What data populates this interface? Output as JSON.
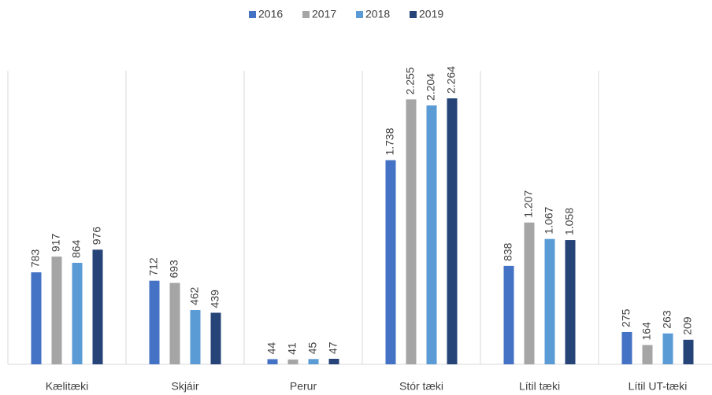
{
  "chart_data": {
    "type": "bar",
    "categories": [
      "Kælitæki",
      "Skjáir",
      "Perur",
      "Stór tæki",
      "Lítil tæki",
      "Lítil UT-tæki"
    ],
    "series": [
      {
        "name": "2016",
        "color": "#4472c4",
        "values": [
          783,
          712,
          44,
          1738,
          838,
          275
        ],
        "value_labels": [
          "783",
          "712",
          "44",
          "1.738",
          "838",
          "275"
        ]
      },
      {
        "name": "2017",
        "color": "#a5a5a5",
        "values": [
          917,
          693,
          41,
          2255,
          1207,
          164
        ],
        "value_labels": [
          "917",
          "693",
          "41",
          "2.255",
          "1.207",
          "164"
        ]
      },
      {
        "name": "2018",
        "color": "#5b9bd5",
        "values": [
          864,
          462,
          45,
          2204,
          1067,
          263
        ],
        "value_labels": [
          "864",
          "462",
          "45",
          "2.204",
          "1.067",
          "263"
        ]
      },
      {
        "name": "2019",
        "color": "#264478",
        "values": [
          976,
          439,
          47,
          2264,
          1058,
          209
        ],
        "value_labels": [
          "976",
          "439",
          "47",
          "2.264",
          "1.058",
          "209"
        ]
      }
    ],
    "legend": "top"
  }
}
